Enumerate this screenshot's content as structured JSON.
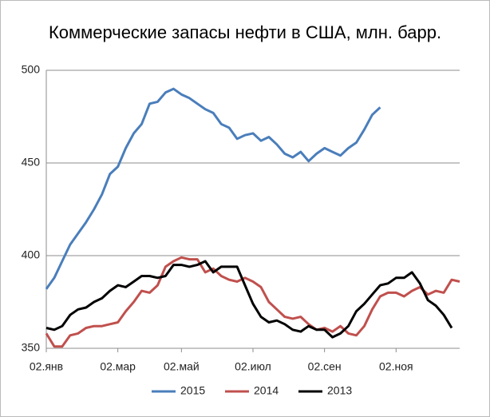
{
  "chart_data": {
    "type": "line",
    "title": "Коммерческие запасы нефти в США, млн. барр.",
    "categories": [
      "02.янв",
      null,
      null,
      null,
      null,
      null,
      null,
      null,
      null,
      "02.мар",
      null,
      null,
      null,
      null,
      null,
      null,
      null,
      "02.май",
      null,
      null,
      null,
      null,
      null,
      null,
      null,
      null,
      "02.июл",
      null,
      null,
      null,
      null,
      null,
      null,
      null,
      null,
      "02.сен",
      null,
      null,
      null,
      null,
      null,
      null,
      null,
      null,
      "02.ноя",
      null,
      null,
      null,
      null,
      null,
      null,
      null,
      null
    ],
    "series": [
      {
        "name": "2015",
        "color": "#4a7ebb",
        "values": [
          382,
          388,
          397,
          406,
          412,
          418,
          425,
          433,
          444,
          448,
          458,
          466,
          471,
          482,
          483,
          488,
          490,
          487,
          485,
          482,
          479,
          477,
          471,
          469,
          463,
          465,
          466,
          462,
          464,
          460,
          455,
          453,
          456,
          451,
          455,
          458,
          456,
          454,
          458,
          461,
          468,
          476,
          480,
          null,
          null,
          null,
          null,
          null,
          null,
          null,
          null,
          null,
          null
        ]
      },
      {
        "name": "2014",
        "color": "#c0504d",
        "values": [
          358,
          351,
          351,
          357,
          358,
          361,
          362,
          362,
          363,
          364,
          370,
          375,
          381,
          380,
          384,
          394,
          397,
          399,
          398,
          398,
          391,
          393,
          389,
          387,
          386,
          388,
          386,
          383,
          375,
          371,
          367,
          366,
          367,
          363,
          360,
          361,
          359,
          362,
          358,
          357,
          362,
          371,
          378,
          380,
          380,
          378,
          381,
          383,
          379,
          381,
          380,
          387,
          386
        ]
      },
      {
        "name": "2013",
        "color": "#000000",
        "values": [
          361,
          360,
          362,
          368,
          371,
          372,
          375,
          377,
          381,
          384,
          383,
          386,
          389,
          389,
          388,
          389,
          395,
          395,
          394,
          395,
          397,
          391,
          394,
          394,
          394,
          384,
          374,
          367,
          364,
          365,
          363,
          360,
          359,
          362,
          360,
          360,
          356,
          358,
          362,
          370,
          374,
          379,
          384,
          385,
          388,
          388,
          391,
          385,
          376,
          373,
          368,
          361,
          null
        ]
      }
    ],
    "ylim": [
      350,
      500
    ],
    "yticks": [
      350,
      400,
      450,
      500
    ],
    "grid": true,
    "legend": "bottom"
  }
}
